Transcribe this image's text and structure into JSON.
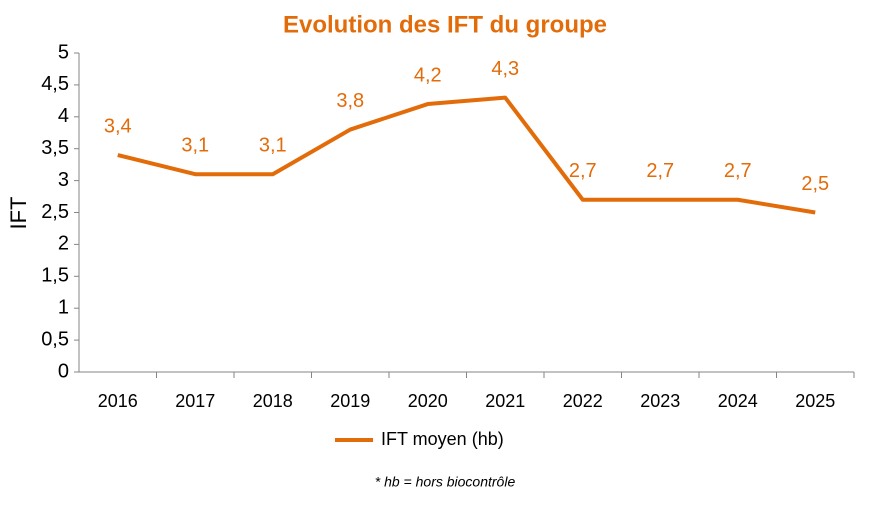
{
  "chart_data": {
    "type": "line",
    "title": "Evolution des IFT du groupe",
    "y_label": "IFT",
    "footnote": "* hb = hors biocontrôle",
    "categories": [
      "2016",
      "2017",
      "2018",
      "2019",
      "2020",
      "2021",
      "2022",
      "2023",
      "2024",
      "2025"
    ],
    "series": [
      {
        "name": "IFT moyen (hb)",
        "color": "#e36c0a",
        "values": [
          3.4,
          3.1,
          3.1,
          3.8,
          4.2,
          4.3,
          2.7,
          2.7,
          2.7,
          2.5
        ],
        "value_labels": [
          "3,4",
          "3,1",
          "3,1",
          "3,8",
          "4,2",
          "4,3",
          "2,7",
          "2,7",
          "2,7",
          "2,5"
        ]
      }
    ],
    "ylim": [
      0,
      5
    ],
    "yticks": [
      0,
      {
        "value": 0.5,
        "label": "0,5"
      },
      1,
      {
        "value": 1.5,
        "label": "1,5"
      },
      2,
      {
        "value": 2.5,
        "label": "2,5"
      },
      3,
      {
        "value": 3.5,
        "label": "3,5"
      },
      4,
      {
        "value": 4.5,
        "label": "4,5"
      },
      5
    ],
    "grid": false,
    "legend": "bottom"
  }
}
